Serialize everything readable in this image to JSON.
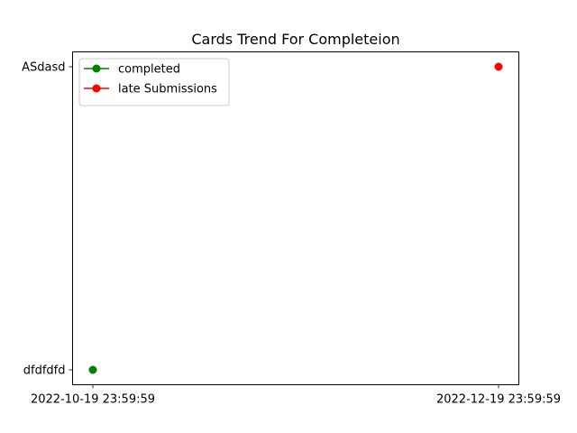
{
  "chart_data": {
    "type": "line",
    "title": "Cards Trend For Completeion",
    "xlabel": "",
    "ylabel": "",
    "x_categories": [
      "2022-10-19 23:59:59",
      "2022-12-19 23:59:59"
    ],
    "y_categories": [
      "dfdfdfd",
      "ASdasd"
    ],
    "series": [
      {
        "name": "completed",
        "color": "#008000",
        "points": [
          {
            "x": "2022-10-19 23:59:59",
            "y": "dfdfdfd"
          }
        ]
      },
      {
        "name": "late Submissions",
        "color": "#ff0000",
        "points": [
          {
            "x": "2022-12-19 23:59:59",
            "y": "ASdasd"
          }
        ]
      }
    ],
    "legend_position": "top-left",
    "grid": false
  }
}
